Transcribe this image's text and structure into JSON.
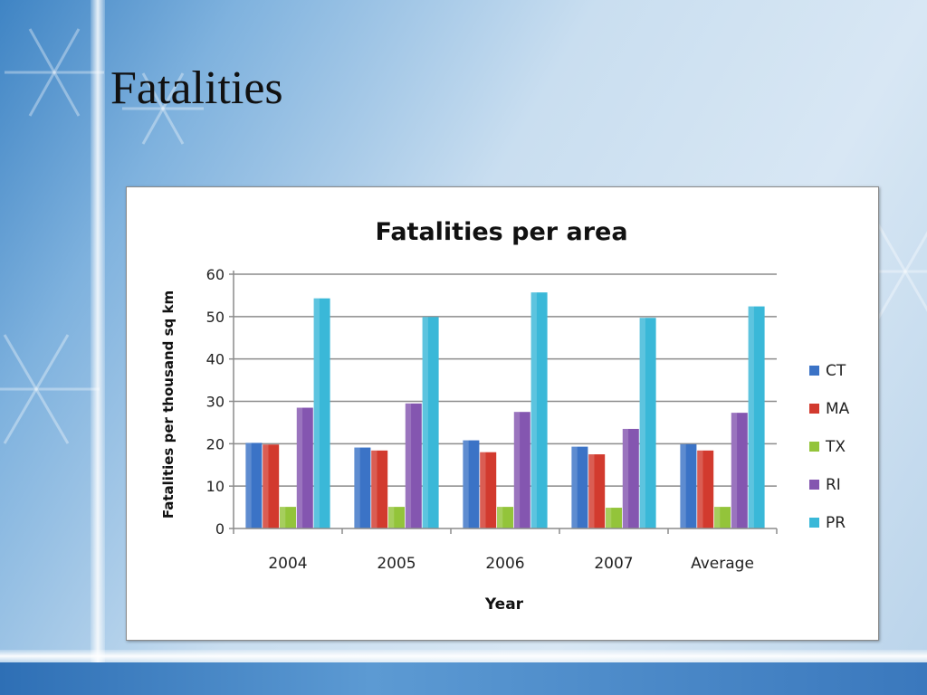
{
  "slide": {
    "title": "Fatalities"
  },
  "chart_data": {
    "type": "bar",
    "title": "Fatalities per area",
    "xlabel": "Year",
    "ylabel": "Fatalities per thousand sq km",
    "categories": [
      "2004",
      "2005",
      "2006",
      "2007",
      "Average"
    ],
    "ylim": [
      0,
      60
    ],
    "yticks": [
      0,
      10,
      20,
      30,
      40,
      50,
      60
    ],
    "grid": true,
    "legend_position": "right",
    "series": [
      {
        "name": "CT",
        "color": "#3b73c6",
        "values": [
          20.2,
          19.1,
          20.8,
          19.3,
          19.9
        ]
      },
      {
        "name": "MA",
        "color": "#d23a2e",
        "values": [
          19.8,
          18.4,
          18.0,
          17.5,
          18.4
        ]
      },
      {
        "name": "TX",
        "color": "#93c43a",
        "values": [
          5.1,
          5.1,
          5.1,
          4.9,
          5.1
        ]
      },
      {
        "name": "RI",
        "color": "#8456b0",
        "values": [
          28.5,
          29.5,
          27.5,
          23.5,
          27.3
        ]
      },
      {
        "name": "PR",
        "color": "#3ab8d8",
        "values": [
          54.3,
          49.9,
          55.7,
          49.7,
          52.4
        ]
      }
    ]
  }
}
